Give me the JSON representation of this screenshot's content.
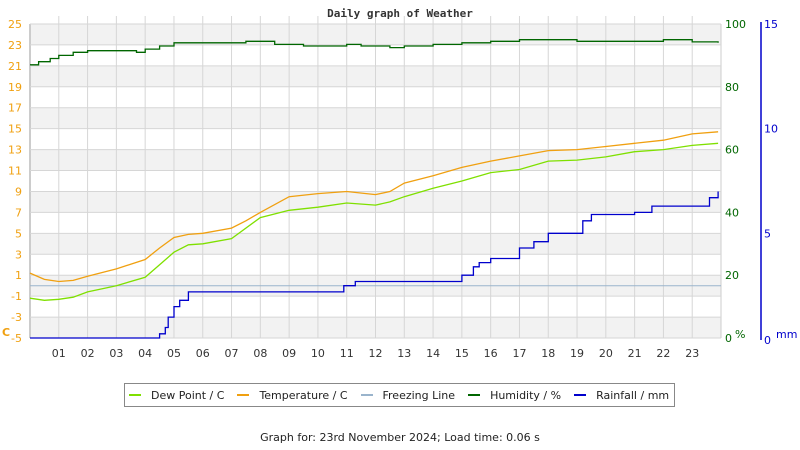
{
  "chart_data": {
    "type": "line",
    "title": "Daily graph of Weather",
    "xlabel": "",
    "x_ticks": [
      "01",
      "02",
      "03",
      "04",
      "05",
      "06",
      "07",
      "08",
      "09",
      "10",
      "11",
      "12",
      "13",
      "14",
      "15",
      "16",
      "17",
      "18",
      "19",
      "20",
      "21",
      "22",
      "23"
    ],
    "x_range_hours": [
      0,
      24
    ],
    "left_axis": {
      "label": "C",
      "ticks": [
        25,
        23,
        21,
        19,
        17,
        15,
        13,
        11,
        9,
        7,
        5,
        3,
        1,
        -1,
        -3,
        -5
      ],
      "range": [
        -5,
        25
      ],
      "color": "#f0a010"
    },
    "right_axis_1": {
      "label": "%",
      "ticks": [
        100,
        80,
        60,
        40,
        20,
        0
      ],
      "range": [
        0,
        100
      ],
      "color": "#006600"
    },
    "right_axis_2": {
      "label": "mm",
      "ticks": [
        15,
        10,
        5,
        0
      ],
      "range": [
        0,
        15
      ],
      "color": "#0000cc"
    },
    "grid": true,
    "legend_position": "bottom",
    "series": [
      {
        "name": "Dew Point / C",
        "color": "#7fe000",
        "axis": "left",
        "x": [
          0,
          0.5,
          1,
          1.5,
          2,
          3,
          4,
          4.5,
          5,
          5.5,
          6,
          7,
          8,
          9,
          10,
          11,
          12,
          12.5,
          13,
          14,
          15,
          16,
          17,
          18,
          19,
          20,
          21,
          22,
          23,
          23.9
        ],
        "values": [
          -1.2,
          -1.4,
          -1.3,
          -1.1,
          -0.6,
          0.0,
          0.8,
          2.0,
          3.2,
          3.9,
          4.0,
          4.5,
          6.5,
          7.2,
          7.5,
          7.9,
          7.7,
          8.0,
          8.5,
          9.3,
          10.0,
          10.8,
          11.1,
          11.9,
          12.0,
          12.3,
          12.8,
          13.0,
          13.4,
          13.6
        ]
      },
      {
        "name": "Temperature / C",
        "color": "#f0a010",
        "axis": "left",
        "x": [
          0,
          0.5,
          1,
          1.5,
          2,
          3,
          4,
          4.5,
          5,
          5.5,
          6,
          7,
          7.5,
          8,
          9,
          10,
          11,
          12,
          12.5,
          13,
          14,
          15,
          16,
          17,
          18,
          19,
          20,
          21,
          22,
          23,
          23.9
        ],
        "values": [
          1.2,
          0.6,
          0.4,
          0.5,
          0.9,
          1.6,
          2.5,
          3.6,
          4.6,
          4.9,
          5.0,
          5.5,
          6.2,
          7.0,
          8.5,
          8.8,
          9.0,
          8.7,
          9.0,
          9.8,
          10.5,
          11.3,
          11.9,
          12.4,
          12.9,
          13.0,
          13.3,
          13.6,
          13.9,
          14.5,
          14.7
        ]
      },
      {
        "name": "Freezing Line",
        "color": "#9ab4cc",
        "axis": "left",
        "x": [
          0,
          24
        ],
        "values": [
          0,
          0
        ]
      },
      {
        "name": "Humidity / %",
        "color": "#006600",
        "axis": "right_1",
        "x": [
          0,
          0.3,
          0.7,
          1,
          1.5,
          2,
          3,
          3.7,
          4,
          4.5,
          5,
          6,
          7,
          7.5,
          8,
          8.5,
          9,
          9.5,
          10,
          10.5,
          11,
          11.5,
          12,
          12.5,
          13,
          14,
          15,
          16,
          17,
          18,
          19,
          20,
          21,
          22,
          22.5,
          23,
          23.9
        ],
        "values": [
          87,
          88,
          89,
          90,
          91,
          91.5,
          91.5,
          91,
          92,
          93,
          94,
          94,
          94,
          94.5,
          94.5,
          93.5,
          93.5,
          93,
          93,
          93,
          93.5,
          93,
          93,
          92.5,
          93,
          93.5,
          94,
          94.5,
          95,
          95,
          94.5,
          94.5,
          94.5,
          95,
          95,
          94.3,
          94
        ]
      },
      {
        "name": "Rainfall / mm",
        "color": "#0000cc",
        "axis": "right_2",
        "x": [
          0,
          4.4,
          4.5,
          4.7,
          4.8,
          5.0,
          5.2,
          5.5,
          6,
          10,
          10.9,
          11.3,
          14,
          15,
          15.4,
          15.6,
          16,
          17,
          17.5,
          18,
          18.5,
          19,
          19.2,
          19.5,
          20,
          21,
          21.6,
          22,
          23,
          23.6,
          23.9
        ],
        "values": [
          0,
          0,
          0.2,
          0.5,
          1.0,
          1.5,
          1.8,
          2.2,
          2.2,
          2.2,
          2.5,
          2.7,
          2.7,
          3.0,
          3.4,
          3.6,
          3.8,
          4.3,
          4.6,
          5.0,
          5.0,
          5.0,
          5.6,
          5.9,
          5.9,
          6.0,
          6.3,
          6.3,
          6.3,
          6.7,
          7.0
        ]
      }
    ]
  },
  "legend": {
    "items": [
      {
        "label": "Dew Point / C",
        "color": "#7fe000"
      },
      {
        "label": "Temperature / C",
        "color": "#f0a010"
      },
      {
        "label": "Freezing Line",
        "color": "#9ab4cc"
      },
      {
        "label": "Humidity / %",
        "color": "#006600"
      },
      {
        "label": "Rainfall / mm",
        "color": "#0000cc"
      }
    ]
  },
  "footer": {
    "text": "Graph for: 23rd November 2024; Load time: 0.06 s"
  }
}
